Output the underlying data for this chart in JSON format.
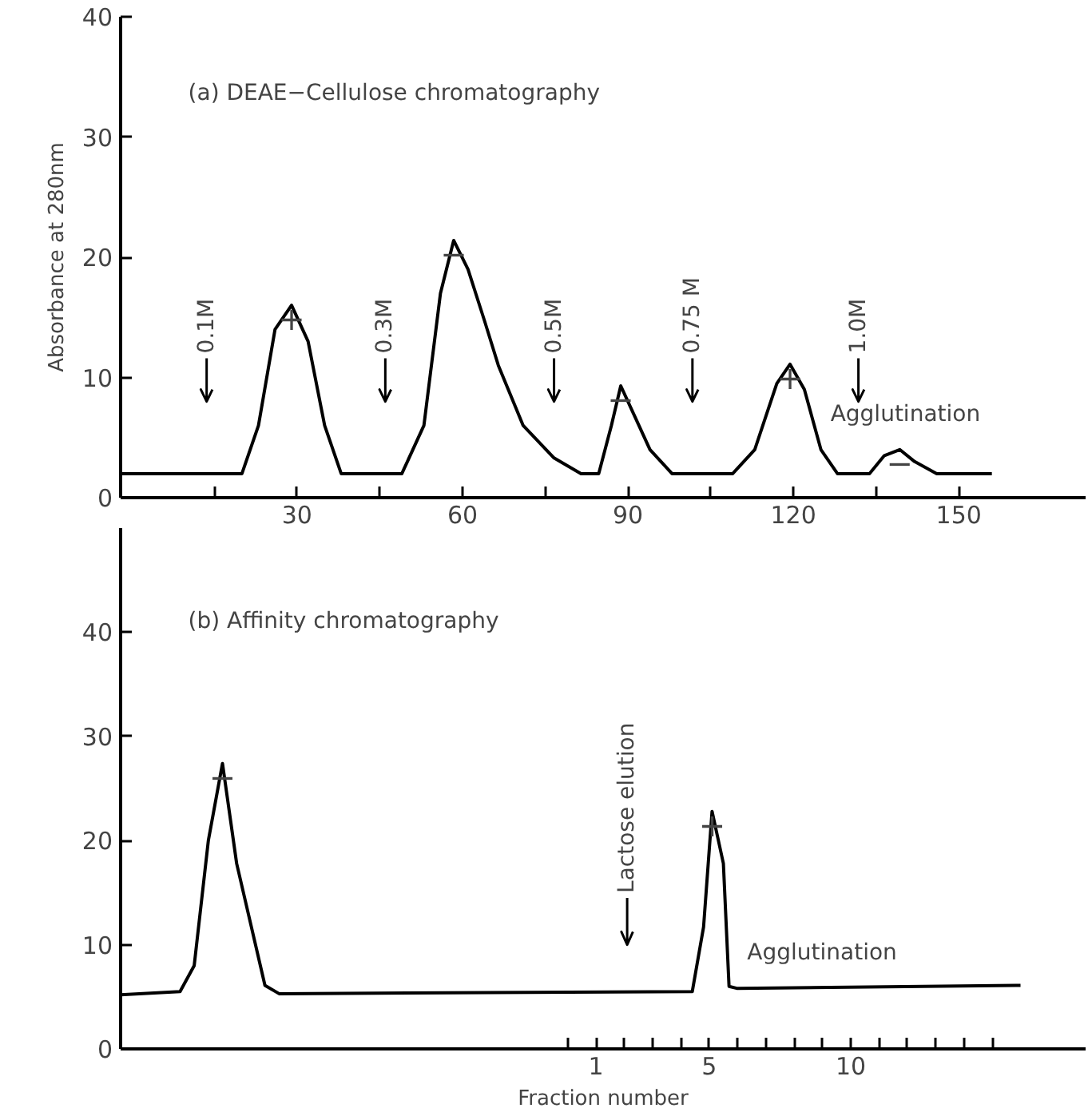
{
  "chart_data": [
    {
      "type": "line",
      "title": "(a) DEAE−Cellulose chromatography",
      "ylabel": "Absorbance at 280nm",
      "x": [
        -2,
        20,
        23,
        26,
        29,
        32,
        35,
        38,
        49,
        53,
        56,
        58.4,
        61,
        64,
        66.5,
        71,
        76.6,
        81.5,
        84.7,
        87,
        88.7,
        91,
        94,
        98,
        109,
        113,
        117,
        119.4,
        122,
        125,
        128,
        133.8,
        136.5,
        139.3,
        142,
        146,
        156
      ],
      "series": [
        {
          "color": "#000000",
          "values": [
            2,
            2,
            6,
            14,
            16,
            13,
            6,
            2,
            2,
            6,
            17,
            21.4,
            19,
            14.7,
            11,
            6,
            3.3,
            2,
            2,
            6,
            9.3,
            7,
            4,
            2,
            2,
            4,
            9.5,
            11.1,
            9,
            4,
            2,
            2,
            3.5,
            4,
            3,
            2,
            2
          ]
        }
      ],
      "xlim": [
        -2,
        173
      ],
      "ylim": [
        0,
        40
      ],
      "xticks": [
        {
          "value": 15,
          "label": null
        },
        30,
        {
          "value": 45,
          "label": null
        },
        60,
        {
          "value": 75,
          "label": null
        },
        90,
        {
          "value": 105,
          "label": null
        },
        120,
        {
          "value": 135,
          "label": null
        },
        150
      ],
      "yticks": [
        0,
        10,
        20,
        30,
        40
      ],
      "grid": false,
      "marker": "none",
      "line_style": "solid",
      "ref_lines": [
        {
          "axis": "x",
          "value": 13.6,
          "label": "0.1M"
        },
        {
          "axis": "x",
          "value": 46,
          "label": "0.3M"
        },
        {
          "axis": "x",
          "value": 76.6,
          "label": "0.5M"
        },
        {
          "axis": "x",
          "value": 101.7,
          "label": "0.75 M"
        },
        {
          "axis": "x",
          "value": 131.8,
          "label": "1.0M"
        }
      ],
      "annotations": [
        {
          "text": "+",
          "x": 29,
          "y": 16
        },
        {
          "text": "−",
          "x": 58.4,
          "y": 21.4
        },
        {
          "text": "−",
          "x": 88.7,
          "y": 9.3
        },
        {
          "text": "+",
          "x": 119.4,
          "y": 11.1
        },
        {
          "text": "−",
          "x": 139.3,
          "y": 4
        },
        {
          "text": "Agglutination",
          "x": 125,
          "y": 4
        }
      ]
    },
    {
      "type": "line",
      "title": "(b) Affinity chromatography",
      "xlabel": "Fraction number",
      "x": [
        -15.8,
        -13.7,
        -13.2,
        -12.7,
        -12.2,
        -11.7,
        -10.7,
        -10.2,
        4.4,
        4.8,
        5.1,
        5.5,
        5.7,
        6.0,
        16
      ],
      "series": [
        {
          "color": "#000000",
          "values": [
            5.2,
            5.5,
            8,
            20,
            27.4,
            17.8,
            6.1,
            5.3,
            5.5,
            11.7,
            22.8,
            17.8,
            6,
            5.8,
            6.1
          ]
        }
      ],
      "xlim": [
        -15.8,
        18.3
      ],
      "ylim": [
        0,
        50
      ],
      "xticks": [
        {
          "value": 0,
          "label": null
        },
        1,
        {
          "value": 2,
          "label": null
        },
        {
          "value": 3,
          "label": null
        },
        {
          "value": 4,
          "label": null
        },
        5,
        {
          "value": 6,
          "label": null
        },
        {
          "value": 7,
          "label": null
        },
        {
          "value": 8,
          "label": null
        },
        {
          "value": 9,
          "label": null
        },
        10,
        {
          "value": 11,
          "label": null
        },
        {
          "value": 12,
          "label": null
        },
        {
          "value": 13,
          "label": null
        },
        {
          "value": 14,
          "label": null
        },
        {
          "value": 15,
          "label": null
        }
      ],
      "yticks": [
        0,
        10,
        20,
        30,
        40
      ],
      "grid": false,
      "marker": "none",
      "line_style": "solid",
      "ref_lines": [
        {
          "axis": "x",
          "value": 2.1,
          "label": "Lactose elution"
        }
      ],
      "annotations": [
        {
          "text": "−",
          "x": -12.2,
          "y": 27.4
        },
        {
          "text": "+",
          "x": 5.1,
          "y": 22.8
        },
        {
          "text": "Agglutination",
          "x": 6.0,
          "y": 5.8
        }
      ]
    }
  ]
}
